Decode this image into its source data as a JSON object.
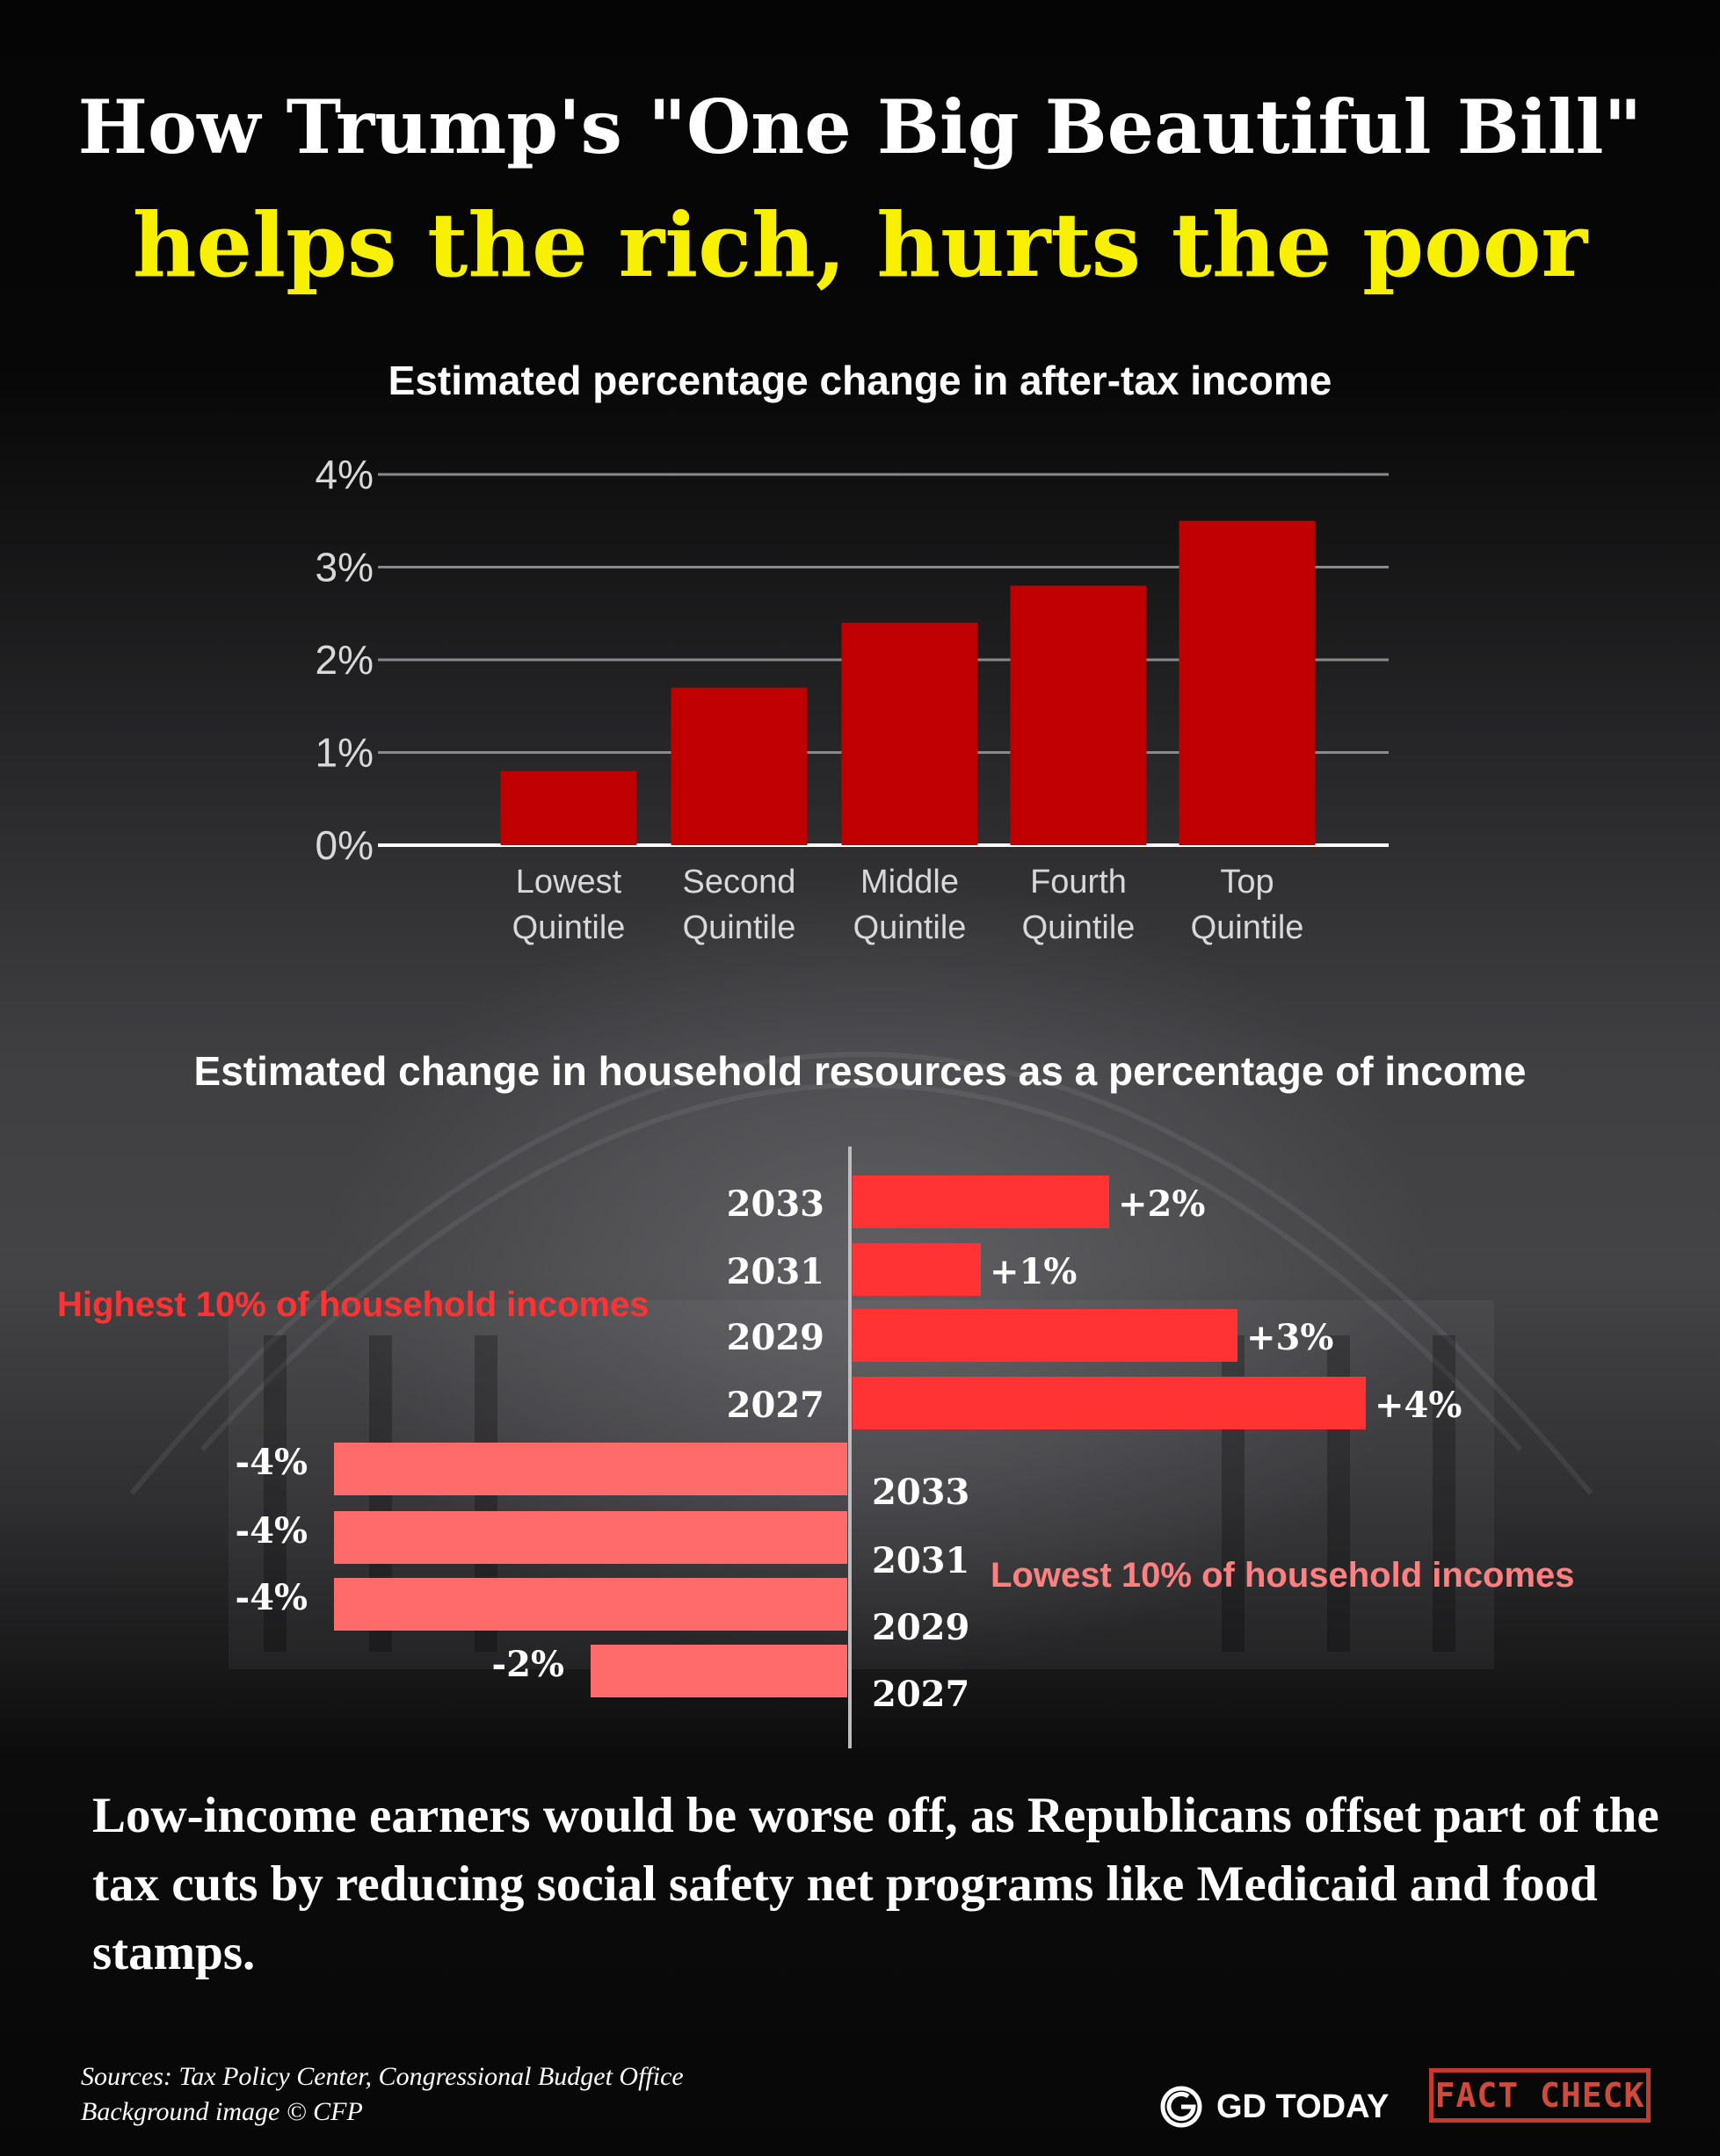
{
  "title": {
    "line1": "How Trump's \"One Big Beautiful Bill\"",
    "line2": "helps the rich, hurts the poor"
  },
  "chart_data": [
    {
      "type": "bar",
      "title": "Estimated percentage change in after-tax income",
      "categories": [
        "Lowest Quintile",
        "Second Quintile",
        "Middle Quintile",
        "Fourth Quintile",
        "Top Quintile"
      ],
      "category_lines": [
        [
          "Lowest",
          "Quintile"
        ],
        [
          "Second",
          "Quintile"
        ],
        [
          "Middle",
          "Quintile"
        ],
        [
          "Fourth",
          "Quintile"
        ],
        [
          "Top",
          "Quintile"
        ]
      ],
      "values": [
        0.8,
        1.7,
        2.4,
        2.8,
        3.5
      ],
      "yticks": [
        "0%",
        "1%",
        "2%",
        "3%",
        "4%"
      ],
      "ylim": [
        0,
        4
      ],
      "grid": true,
      "color": "#c00000"
    },
    {
      "type": "bar",
      "orientation": "horizontal",
      "title": "Estimated change in household resources as a percentage of income",
      "series": [
        {
          "name": "Highest 10% of household incomes",
          "years": [
            "2033",
            "2031",
            "2029",
            "2027"
          ],
          "values": [
            2,
            1,
            3,
            4
          ],
          "labels": [
            "+2%",
            "+1%",
            "+3%",
            "+4%"
          ],
          "color": "#ff3333"
        },
        {
          "name": "Lowest 10% of household incomes",
          "years": [
            "2033",
            "2031",
            "2029",
            "2027"
          ],
          "values": [
            -4,
            -4,
            -4,
            -2
          ],
          "labels": [
            "-4%",
            "-4%",
            "-4%",
            "-2%"
          ],
          "color": "#ff6a6a"
        }
      ]
    }
  ],
  "conclusion": "Low-income earners would be worse off, as Republicans offset part of the tax cuts by reducing social safety net programs like Medicaid and food stamps.",
  "sources": {
    "line1": "Sources: Tax Policy Center, Congressional Budget Office",
    "line2": "Background image © CFP"
  },
  "brand": {
    "logo_icon": "gd-today-logo-icon",
    "name": "GD TODAY",
    "badge": "FACT CHECK"
  }
}
